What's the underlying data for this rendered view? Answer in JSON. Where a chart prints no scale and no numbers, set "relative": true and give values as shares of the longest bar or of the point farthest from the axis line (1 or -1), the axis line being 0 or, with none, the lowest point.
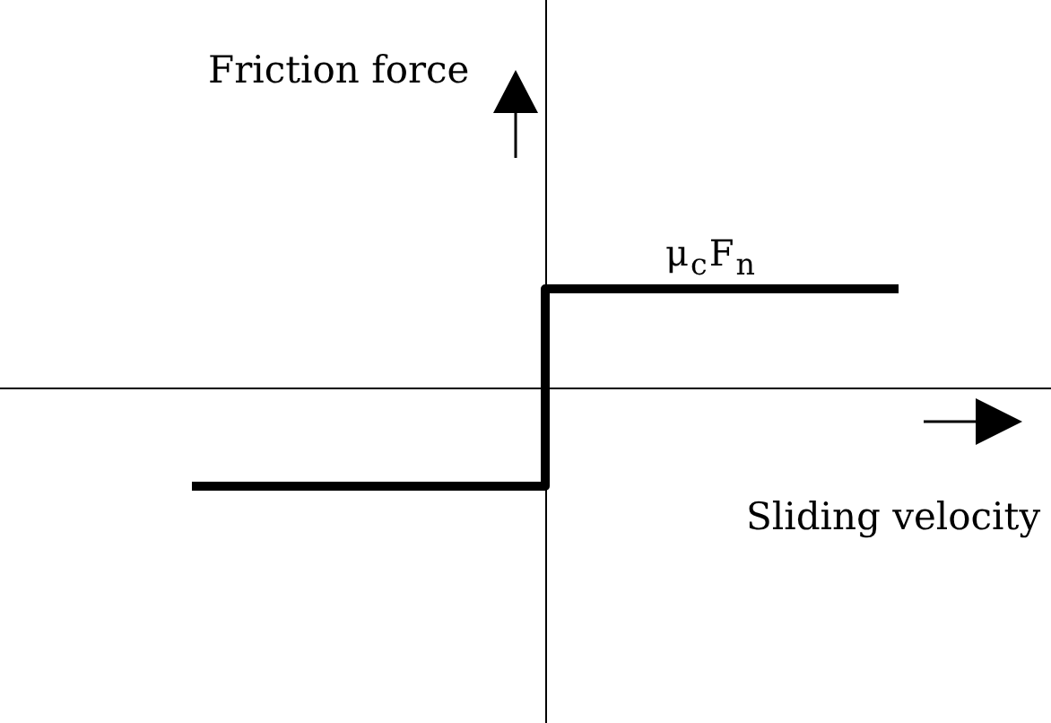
{
  "chart_data": {
    "type": "step",
    "relative": true,
    "categories": [
      null,
      null,
      null
    ],
    "values": [
      -1,
      1,
      1
    ],
    "color": "#000000",
    "xlabel": "Sliding velocity",
    "marker": "none",
    "annotations": [
      "Friction force",
      {
        "text": "μ$_{c}$F$_{n}$",
        "y": 1
      }
    ]
  }
}
